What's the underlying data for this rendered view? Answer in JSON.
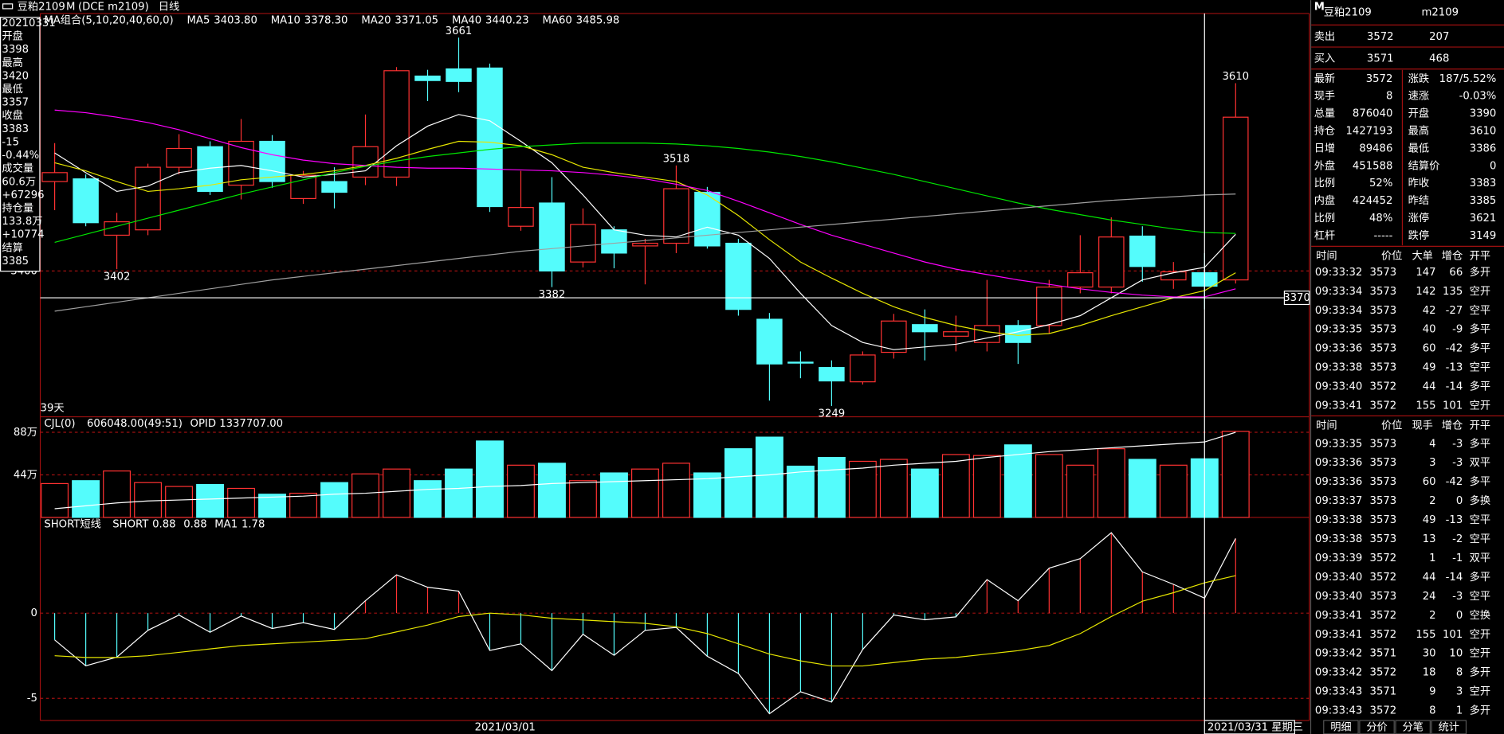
{
  "top_bar": {
    "name": "豆粕2109",
    "marker": "M",
    "code": "(DCE m2109)",
    "period": "日线"
  },
  "info_panel": {
    "items": [
      "20210331",
      "开盘",
      "3398",
      "最高",
      "3420",
      "最低",
      "3357",
      "收盘",
      "3383",
      "-15",
      "-0.44%",
      "成交量",
      "60.6万",
      "+67296",
      "持仓量",
      "133.8万",
      "+10774",
      "结算",
      "3385"
    ],
    "colors": [
      "#ffffff",
      "#ffffff",
      "#ffffff",
      "#ffffff",
      "#ff3232",
      "#ffffff",
      "#00e600",
      "#ffffff",
      "#ffffff",
      "#00e600",
      "#00e600",
      "#ffffff",
      "#ffff00",
      "#ff3232",
      "#ffffff",
      "#ffff00",
      "#ff3232",
      "#ffffff",
      "#ffff00"
    ]
  },
  "quote": {
    "marker": "M",
    "name": "豆粕2109",
    "code": "m2109",
    "ask": [
      "卖出",
      "3572",
      "207"
    ],
    "bid": [
      "买入",
      "3571",
      "468"
    ],
    "stats": [
      [
        "最新",
        "3572",
        "涨跌",
        "187/5.52%"
      ],
      [
        "现手",
        "8",
        "速涨",
        "-0.03%"
      ],
      [
        "总量",
        "876040",
        "开盘",
        "3390"
      ],
      [
        "持仓",
        "1427193",
        "最高",
        "3610"
      ],
      [
        "日增",
        "89486",
        "最低",
        "3386"
      ],
      [
        "外盘",
        "451588",
        "结算价",
        "0"
      ],
      [
        "比例",
        "52%",
        "昨收",
        "3383"
      ],
      [
        "内盘",
        "424452",
        "昨结",
        "3385"
      ],
      [
        "比例",
        "48%",
        "涨停",
        "3621"
      ],
      [
        "杠杆",
        "-----",
        "跌停",
        "3149"
      ]
    ],
    "stat_colors": [
      [
        "#ff3232",
        "#ff3232"
      ],
      [
        "#ffff00",
        "#00e600"
      ],
      [
        "#ffff00",
        "#ff3232"
      ],
      [
        "#ffff00",
        "#ff3232"
      ],
      [
        "#ffff00",
        "#ff3232"
      ],
      [
        "#ffff00",
        "#ffffff"
      ],
      [
        "#ffff00",
        "#ffffff"
      ],
      [
        "#ffff00",
        "#ffffff"
      ],
      [
        "#ffff00",
        "#ff3232"
      ],
      [
        "#ffff00",
        "#00e600"
      ]
    ]
  },
  "ticks_big": {
    "header": [
      "时间",
      "价位",
      "大单",
      "增仓",
      "开平"
    ],
    "rows": [
      [
        "09:33:32",
        "3573",
        "147",
        "66",
        "多开"
      ],
      [
        "09:33:34",
        "3573",
        "142",
        "135",
        "空开"
      ],
      [
        "09:33:34",
        "3573",
        "42",
        "-27",
        "空平"
      ],
      [
        "09:33:35",
        "3573",
        "40",
        "-9",
        "多平"
      ],
      [
        "09:33:36",
        "3573",
        "60",
        "-42",
        "多平"
      ],
      [
        "09:33:38",
        "3573",
        "49",
        "-13",
        "空平"
      ],
      [
        "09:33:40",
        "3572",
        "44",
        "-14",
        "多平"
      ],
      [
        "09:33:41",
        "3572",
        "155",
        "101",
        "空开"
      ]
    ],
    "colors": [
      "#ff3232",
      "#00e600",
      "#ff3232",
      "#00e600",
      "#00e600",
      "#ff3232",
      "#00e600",
      "#00e600"
    ]
  },
  "ticks_all": {
    "header": [
      "时间",
      "价位",
      "现手",
      "增仓",
      "开平"
    ],
    "rows": [
      [
        "09:33:35",
        "3573",
        "4",
        "-3",
        "多平"
      ],
      [
        "09:33:36",
        "3573",
        "3",
        "-3",
        "双平"
      ],
      [
        "09:33:36",
        "3573",
        "60",
        "-42",
        "多平"
      ],
      [
        "09:33:37",
        "3573",
        "2",
        "0",
        "多换"
      ],
      [
        "09:33:38",
        "3573",
        "49",
        "-13",
        "空平"
      ],
      [
        "09:33:38",
        "3573",
        "13",
        "-2",
        "空平"
      ],
      [
        "09:33:39",
        "3572",
        "1",
        "-1",
        "双平"
      ],
      [
        "09:33:40",
        "3572",
        "44",
        "-14",
        "多平"
      ],
      [
        "09:33:40",
        "3573",
        "24",
        "-3",
        "空平"
      ],
      [
        "09:33:41",
        "3572",
        "2",
        "0",
        "空换"
      ],
      [
        "09:33:41",
        "3572",
        "155",
        "101",
        "空开"
      ],
      [
        "09:33:42",
        "3571",
        "30",
        "10",
        "空开"
      ],
      [
        "09:33:42",
        "3572",
        "18",
        "8",
        "多开"
      ],
      [
        "09:33:43",
        "3571",
        "9",
        "3",
        "空开"
      ],
      [
        "09:33:43",
        "3572",
        "8",
        "1",
        "多开"
      ]
    ],
    "colors": [
      "#00e600",
      "#00e600",
      "#00e600",
      "#ff3232",
      "#ff3232",
      "#ff3232",
      "#00e600",
      "#00e600",
      "#ff3232",
      "#00e600",
      "#00e600",
      "#00e600",
      "#ff3232",
      "#00e600",
      "#ff3232"
    ]
  },
  "tabs": [
    "明细",
    "分价",
    "分笔",
    "统计"
  ],
  "chart_data": [
    {
      "type": "candlestick",
      "indicator": "MA组合(5,10,20,40,60,0)",
      "period_label": "39天",
      "categories": [
        null,
        null,
        null,
        null,
        null,
        null,
        null,
        null,
        null,
        null,
        null,
        null,
        null,
        null,
        "2021/03/01",
        null,
        null,
        null,
        null,
        null,
        null,
        null,
        null,
        null,
        null,
        null,
        null,
        null,
        null,
        null,
        null,
        null,
        null,
        null,
        null,
        null,
        null,
        "2021/03/31 星期三",
        null
      ],
      "open": [
        3500,
        3503,
        3440,
        3446,
        3516,
        3539,
        3496,
        3545,
        3481,
        3500,
        3505,
        3505,
        3618,
        3626,
        3627,
        3450,
        3476,
        3410,
        3446,
        3428,
        3431,
        3488,
        3431,
        3346,
        3298,
        3292,
        3276,
        3309,
        3340,
        3327,
        3320,
        3339,
        3339,
        3382,
        3382,
        3439,
        3390,
        3398,
        3390
      ],
      "high": [
        3543,
        3508,
        3465,
        3520,
        3553,
        3545,
        3570,
        3552,
        3512,
        3516,
        3575,
        3628,
        3625,
        3661,
        3632,
        3512,
        3505,
        3470,
        3450,
        3436,
        3518,
        3494,
        3436,
        3353,
        3310,
        3300,
        3310,
        3352,
        3357,
        3350,
        3390,
        3345,
        3390,
        3440,
        3460,
        3450,
        3410,
        3420,
        3610
      ],
      "low": [
        3468,
        3450,
        3402,
        3440,
        3508,
        3485,
        3480,
        3493,
        3475,
        3470,
        3496,
        3495,
        3590,
        3600,
        3466,
        3445,
        3382,
        3404,
        3403,
        3385,
        3420,
        3425,
        3350,
        3255,
        3280,
        3249,
        3273,
        3302,
        3300,
        3310,
        3310,
        3296,
        3330,
        3375,
        3375,
        3388,
        3380,
        3357,
        3386
      ],
      "close": [
        3510,
        3454,
        3455,
        3516,
        3537,
        3489,
        3545,
        3500,
        3507,
        3488,
        3539,
        3624,
        3613,
        3612,
        3472,
        3471,
        3400,
        3452,
        3420,
        3431,
        3492,
        3428,
        3357,
        3296,
        3297,
        3277,
        3306,
        3344,
        3332,
        3332,
        3339,
        3320,
        3382,
        3398,
        3438,
        3405,
        3399,
        3383,
        3572
      ],
      "up_color": "#ff3232",
      "down_color": "#54fcfc",
      "series": [
        {
          "name": "MA5",
          "value_label": "3403.80",
          "color": "#ffffff",
          "values": [
            3532,
            3510,
            3489,
            3495,
            3510,
            3515,
            3518,
            3512,
            3505,
            3508,
            3512,
            3540,
            3562,
            3575,
            3568,
            3545,
            3521,
            3485,
            3446,
            3440,
            3438,
            3449,
            3440,
            3414,
            3375,
            3339,
            3320,
            3312,
            3315,
            3318,
            3325,
            3332,
            3340,
            3350,
            3370,
            3390,
            3398,
            3404,
            3441
          ]
        },
        {
          "name": "MA10",
          "value_label": "3378.30",
          "color": "#e6e600",
          "values": [
            3521,
            3512,
            3500,
            3489,
            3492,
            3496,
            3502,
            3505,
            3508,
            3512,
            3518,
            3526,
            3536,
            3545,
            3544,
            3540,
            3530,
            3516,
            3510,
            3505,
            3500,
            3485,
            3462,
            3435,
            3410,
            3392,
            3375,
            3360,
            3348,
            3339,
            3332,
            3328,
            3330,
            3339,
            3350,
            3360,
            3370,
            3378,
            3398
          ]
        },
        {
          "name": "MA20",
          "value_label": "3371.05",
          "color": "#ff00ff",
          "values": [
            3580,
            3577,
            3572,
            3566,
            3558,
            3548,
            3538,
            3530,
            3524,
            3520,
            3518,
            3516,
            3515,
            3515,
            3514,
            3513,
            3512,
            3510,
            3507,
            3503,
            3497,
            3490,
            3478,
            3465,
            3452,
            3440,
            3430,
            3420,
            3410,
            3402,
            3396,
            3390,
            3385,
            3380,
            3376,
            3373,
            3371,
            3371,
            3380
          ]
        },
        {
          "name": "MA40",
          "value_label": "3440.23",
          "color": "#00e600",
          "values": [
            3432,
            3441,
            3450,
            3459,
            3468,
            3477,
            3486,
            3494,
            3502,
            3510,
            3517,
            3523,
            3528,
            3532,
            3536,
            3539,
            3541,
            3543,
            3543,
            3543,
            3542,
            3540,
            3537,
            3533,
            3528,
            3522,
            3515,
            3508,
            3500,
            3492,
            3484,
            3476,
            3469,
            3463,
            3457,
            3452,
            3447,
            3443,
            3442
          ]
        },
        {
          "name": "MA60",
          "value_label": "3485.98",
          "color": "#a0a0a0",
          "values": [
            3355,
            3360,
            3365,
            3370,
            3375,
            3380,
            3385,
            3390,
            3394,
            3398,
            3402,
            3406,
            3410,
            3414,
            3418,
            3422,
            3425,
            3428,
            3431,
            3434,
            3437,
            3440,
            3443,
            3446,
            3449,
            3452,
            3455,
            3458,
            3461,
            3464,
            3467,
            3470,
            3473,
            3476,
            3479,
            3481,
            3483,
            3485,
            3486
          ]
        }
      ],
      "annotations": [
        3661,
        3518,
        3402,
        3382,
        3249,
        3610
      ],
      "crosshair_value": 3370,
      "ylim": [
        3239,
        3688
      ],
      "yticks": [
        3400
      ]
    },
    {
      "type": "bar",
      "indicator": "CJL(0)",
      "header": [
        "606048.00(49:51)",
        "OPID 1337707.00"
      ],
      "values": [
        35,
        38,
        48,
        36,
        32,
        34,
        30,
        24,
        25,
        36,
        45,
        50,
        38,
        50,
        79,
        54,
        56,
        38,
        46,
        50,
        56,
        46,
        71,
        83,
        53,
        62,
        58,
        60,
        50,
        65,
        64,
        75,
        65,
        54,
        71,
        60,
        54,
        60.6,
        89
      ],
      "series": [
        {
          "color": "#ffffff",
          "values": [
            9,
            12,
            15,
            17,
            18,
            19,
            20,
            21,
            22,
            24,
            25,
            27,
            29,
            30,
            32,
            33,
            35,
            36,
            37,
            38,
            39,
            40,
            42,
            44,
            47,
            49,
            51,
            54,
            56,
            58,
            62,
            65,
            68,
            70,
            72,
            74,
            76,
            78,
            88
          ]
        }
      ],
      "ylim": [
        0,
        103
      ],
      "yticks": [
        {
          "value": 88,
          "label": "88万"
        },
        {
          "value": 44,
          "label": "44万"
        }
      ]
    },
    {
      "type": "bar",
      "indicator": "SHORT短线",
      "extra_label": "0.88",
      "values": [
        -1.57,
        -3.09,
        -2.58,
        -1.01,
        -0.11,
        -1.12,
        -0.17,
        -0.9,
        -0.56,
        -0.96,
        0.73,
        2.25,
        1.52,
        1.29,
        -2.19,
        -1.8,
        -3.37,
        -1.24,
        -2.47,
        -1.01,
        -0.84,
        -2.53,
        -3.54,
        -5.9,
        -4.61,
        -5.22,
        -2.13,
        -0.11,
        -0.39,
        -0.22,
        1.97,
        0.73,
        2.64,
        3.2,
        4.72,
        2.42,
        1.69,
        0.88,
        4.38
      ],
      "up_color": "#ff3232",
      "down_color": "#54fcfc",
      "series": [
        {
          "name": "SHORT",
          "value_label": "0.88",
          "color": "#ffffff",
          "values": [
            -1.57,
            -3.09,
            -2.58,
            -1.01,
            -0.11,
            -1.12,
            -0.17,
            -0.9,
            -0.56,
            -0.96,
            0.73,
            2.25,
            1.52,
            1.29,
            -2.19,
            -1.8,
            -3.37,
            -1.24,
            -2.47,
            -1.01,
            -0.84,
            -2.53,
            -3.54,
            -5.9,
            -4.61,
            -5.22,
            -2.13,
            -0.11,
            -0.39,
            -0.22,
            1.97,
            0.73,
            2.64,
            3.2,
            4.72,
            2.42,
            1.69,
            0.88,
            4.38
          ]
        },
        {
          "name": "MA1",
          "value_label": "1.78",
          "color": "#e6e600",
          "values": [
            -2.5,
            -2.6,
            -2.6,
            -2.5,
            -2.3,
            -2.1,
            -1.9,
            -1.8,
            -1.7,
            -1.6,
            -1.5,
            -1.1,
            -0.7,
            -0.2,
            0.0,
            -0.1,
            -0.3,
            -0.4,
            -0.5,
            -0.6,
            -0.8,
            -1.2,
            -1.8,
            -2.4,
            -2.8,
            -3.1,
            -3.1,
            -2.9,
            -2.7,
            -2.6,
            -2.4,
            -2.2,
            -1.9,
            -1.2,
            -0.2,
            0.7,
            1.2,
            1.78,
            2.2
          ]
        }
      ],
      "ylim": [
        -6.3,
        5.56
      ],
      "yticks": [
        0,
        -5
      ]
    }
  ]
}
